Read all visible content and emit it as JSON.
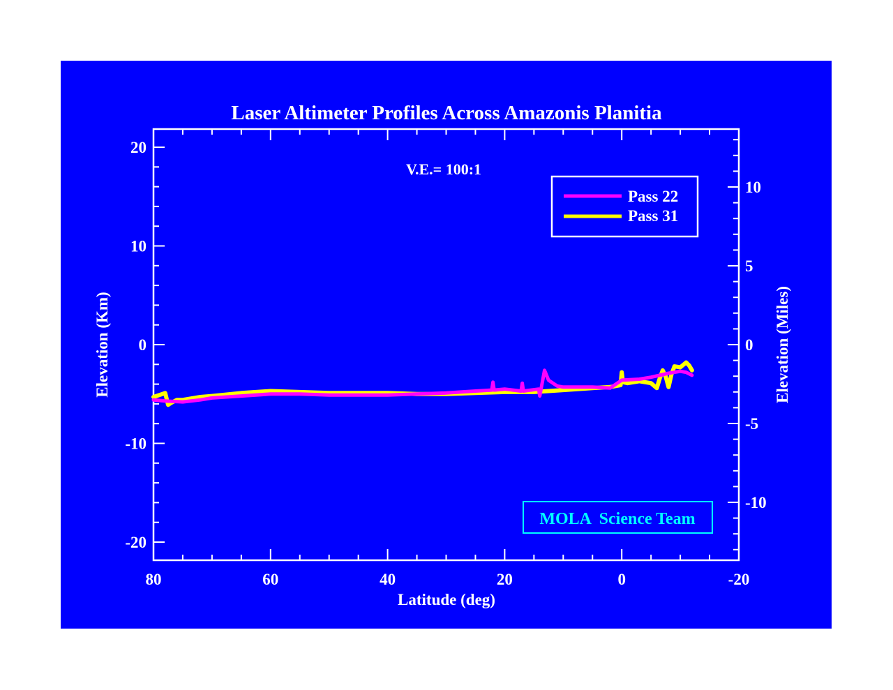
{
  "chart_data": {
    "type": "line",
    "title": "Laser Altimeter Profiles Across Amazonis Planitia",
    "annotation": "V.E.= 100:1",
    "credit": "MOLA  Science Team",
    "xlabel": "Latitude (deg)",
    "ylabel": "Elevation (Km)",
    "ylabel_right": "Elevation (Miles)",
    "xlim": [
      80,
      -20
    ],
    "ylim": [
      -22,
      21.5
    ],
    "ylim_right_miles": [
      -13.7,
      13.4
    ],
    "x_ticks": [
      80,
      60,
      40,
      20,
      0,
      -20
    ],
    "x_tick_labels": [
      "80",
      "60",
      "40",
      "20",
      "0",
      "-20"
    ],
    "y_ticks": [
      20,
      10,
      0,
      -10,
      -20
    ],
    "y_tick_labels": [
      "20",
      "10",
      "0",
      "-10",
      "-20"
    ],
    "y_right_ticks": [
      10,
      5,
      0,
      -5,
      -10
    ],
    "y_right_tick_labels": [
      "10",
      "5",
      "0",
      "-5",
      "-10"
    ],
    "grid": false,
    "legend_position": "upper right",
    "series": [
      {
        "name": "Pass 22",
        "color": "#ff00ff",
        "x": [
          80,
          78,
          75,
          72,
          70,
          65,
          60,
          55,
          50,
          45,
          40,
          35,
          30,
          25,
          22.2,
          22,
          21.8,
          20,
          17.2,
          17,
          16.8,
          14.2,
          14,
          13.2,
          12.5,
          11,
          10,
          5,
          2,
          0,
          -3,
          -5,
          -8,
          -10,
          -11,
          -12
        ],
        "y": [
          -5.6,
          -5.7,
          -5.8,
          -5.6,
          -5.4,
          -5.2,
          -5.0,
          -5.0,
          -5.1,
          -5.1,
          -5.1,
          -5.0,
          -4.9,
          -4.7,
          -4.6,
          -3.8,
          -4.6,
          -4.5,
          -4.7,
          -3.9,
          -4.7,
          -4.5,
          -5.2,
          -2.6,
          -3.6,
          -4.2,
          -4.3,
          -4.3,
          -4.4,
          -3.6,
          -3.5,
          -3.3,
          -2.9,
          -2.7,
          -2.8,
          -3.1
        ]
      },
      {
        "name": "Pass 31",
        "color": "#ffff00",
        "x": [
          80,
          78.5,
          78,
          77.5,
          77,
          76,
          75,
          72,
          70,
          65,
          60,
          55,
          50,
          45,
          40,
          35,
          30,
          25,
          20,
          15,
          10,
          5,
          2,
          0.2,
          0,
          -0.2,
          -1,
          -3,
          -5,
          -6,
          -6.5,
          -7,
          -7.5,
          -8,
          -8.5,
          -9,
          -10,
          -11,
          -11.5,
          -12
        ],
        "y": [
          -5.3,
          -5.0,
          -4.9,
          -6.1,
          -5.9,
          -5.6,
          -5.6,
          -5.3,
          -5.2,
          -4.9,
          -4.7,
          -4.8,
          -4.9,
          -4.9,
          -4.9,
          -5.0,
          -5.0,
          -4.9,
          -4.8,
          -4.8,
          -4.6,
          -4.4,
          -4.3,
          -4.1,
          -2.8,
          -3.8,
          -3.9,
          -3.7,
          -3.9,
          -4.4,
          -3.4,
          -2.6,
          -3.2,
          -4.3,
          -3.0,
          -2.2,
          -2.3,
          -1.8,
          -2.1,
          -2.6
        ]
      }
    ]
  }
}
